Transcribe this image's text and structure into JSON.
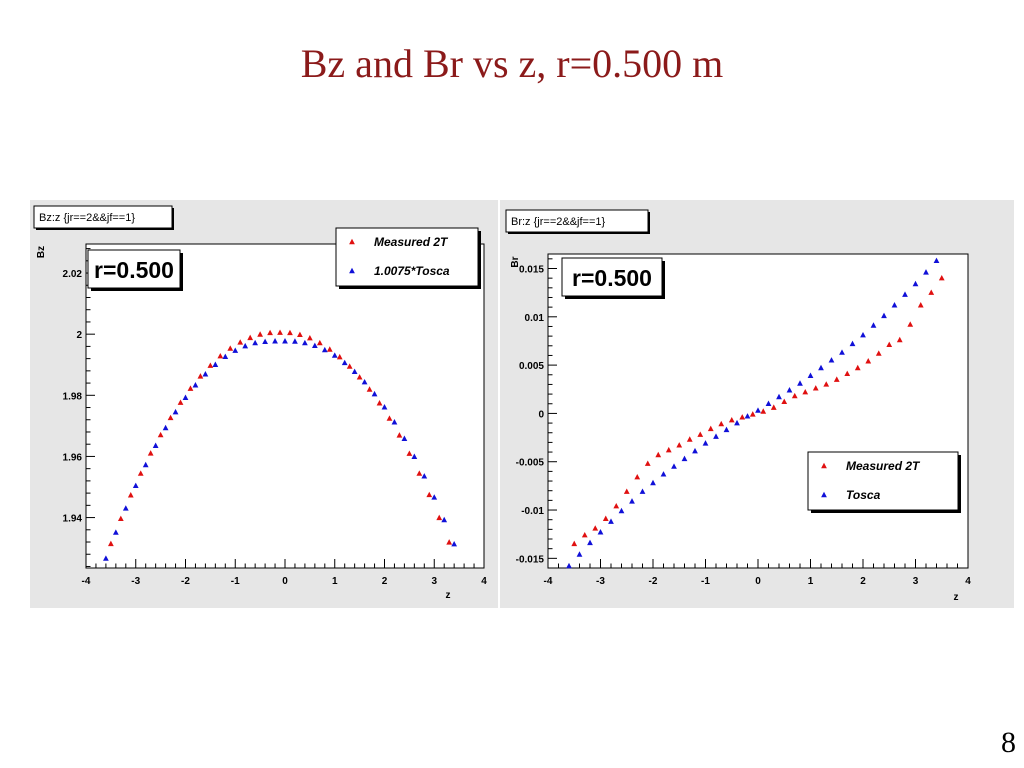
{
  "slide": {
    "title": "Bz and Br vs z,   r=0.500 m",
    "page_number": "8"
  },
  "colors": {
    "measured": "#e01010",
    "tosca": "#1010d8",
    "title": "#8b1a1a",
    "frame_bg": "#e6e6e6",
    "plot_bg": "#ffffff"
  },
  "chart_data": [
    {
      "type": "scatter",
      "hist_title": "Bz:z {jr==2&&jf==1}",
      "annotation": "r=0.500",
      "xlabel": "z",
      "ylabel": "Bz",
      "xlim": [
        -4,
        4
      ],
      "ylim": [
        1.9235,
        2.0295
      ],
      "xticks": [
        -4,
        -3,
        -2,
        -1,
        0,
        1,
        2,
        3,
        4
      ],
      "xtick_labels": [
        "-4",
        "-3",
        "-2",
        "-1",
        "0",
        "1",
        "2",
        "3",
        "4"
      ],
      "yticks": [
        1.94,
        1.96,
        1.98,
        2,
        2.02
      ],
      "ytick_labels": [
        "1.94",
        "1.96",
        "1.98",
        "2",
        "2.02"
      ],
      "legend_position": "top-right",
      "series": [
        {
          "name": "Measured 2T",
          "color": "#e01010",
          "x": [
            -3.5,
            -3.3,
            -3.1,
            -2.9,
            -2.7,
            -2.5,
            -2.3,
            -2.1,
            -1.9,
            -1.7,
            -1.5,
            -1.3,
            -1.1,
            -0.9,
            -0.7,
            -0.5,
            -0.3,
            -0.1,
            0.1,
            0.3,
            0.5,
            0.7,
            0.9,
            1.1,
            1.3,
            1.5,
            1.7,
            1.9,
            2.1,
            2.3,
            2.5,
            2.7,
            2.9,
            3.1,
            3.3,
            3.5
          ],
          "y": [
            1.9314,
            1.9396,
            1.9473,
            1.9544,
            1.961,
            1.967,
            1.9726,
            1.9776,
            1.9822,
            1.9862,
            1.9897,
            1.9928,
            1.9953,
            1.9973,
            1.9988,
            1.9999,
            2.0004,
            2.0005,
            2.0004,
            1.9998,
            1.9987,
            1.9971,
            1.995,
            1.9925,
            1.9894,
            1.9859,
            1.9819,
            1.9774,
            1.9724,
            1.9669,
            1.9609,
            1.9544,
            1.9474,
            1.9399,
            1.9319,
            1.9234
          ]
        },
        {
          "name": "1.0075*Tosca",
          "color": "#1010d8",
          "x": [
            -3.6,
            -3.4,
            -3.2,
            -3.0,
            -2.8,
            -2.6,
            -2.4,
            -2.2,
            -2.0,
            -1.8,
            -1.6,
            -1.4,
            -1.2,
            -1.0,
            -0.8,
            -0.6,
            -0.4,
            -0.2,
            0.0,
            0.2,
            0.4,
            0.6,
            0.8,
            1.0,
            1.2,
            1.4,
            1.6,
            1.8,
            2.0,
            2.2,
            2.4,
            2.6,
            2.8,
            3.0,
            3.2,
            3.4,
            3.6
          ],
          "y": [
            1.9266,
            1.9351,
            1.943,
            1.9504,
            1.9572,
            1.9635,
            1.9693,
            1.9745,
            1.9792,
            1.9833,
            1.9869,
            1.99,
            1.9926,
            1.9946,
            1.9961,
            1.9971,
            1.9975,
            1.9977,
            1.9977,
            1.9976,
            1.9971,
            1.9962,
            1.9948,
            1.993,
            1.9906,
            1.9877,
            1.9843,
            1.9804,
            1.9761,
            1.9712,
            1.9658,
            1.9599,
            1.9535,
            1.9466,
            1.9392,
            1.9313,
            1.9228
          ]
        }
      ]
    },
    {
      "type": "scatter",
      "hist_title": "Br:z {jr==2&&jf==1}",
      "annotation": "r=0.500",
      "xlabel": "z",
      "ylabel": "Br",
      "xlim": [
        -4,
        4
      ],
      "ylim": [
        -0.016,
        0.0165
      ],
      "xticks": [
        -4,
        -3,
        -2,
        -1,
        0,
        1,
        2,
        3,
        4
      ],
      "xtick_labels": [
        "-4",
        "-3",
        "-2",
        "-1",
        "0",
        "1",
        "2",
        "3",
        "4"
      ],
      "yticks": [
        -0.015,
        -0.01,
        -0.005,
        0,
        0.005,
        0.01,
        0.015
      ],
      "ytick_labels": [
        "-0.015",
        "-0.01",
        "-0.005",
        "0",
        "0.005",
        "0.01",
        "0.015"
      ],
      "legend_position": "bottom-right",
      "series": [
        {
          "name": "Measured 2T",
          "color": "#e01010",
          "x": [
            -3.5,
            -3.3,
            -3.1,
            -2.9,
            -2.7,
            -2.5,
            -2.3,
            -2.1,
            -1.9,
            -1.7,
            -1.5,
            -1.3,
            -1.1,
            -0.9,
            -0.7,
            -0.5,
            -0.3,
            -0.1,
            0.1,
            0.3,
            0.5,
            0.7,
            0.9,
            1.1,
            1.3,
            1.5,
            1.7,
            1.9,
            2.1,
            2.3,
            2.5,
            2.7,
            2.9,
            3.1,
            3.3,
            3.5
          ],
          "y": [
            -0.0135,
            -0.0126,
            -0.0119,
            -0.0109,
            -0.0096,
            -0.0081,
            -0.0066,
            -0.0052,
            -0.0043,
            -0.0038,
            -0.0033,
            -0.0027,
            -0.0022,
            -0.0016,
            -0.0011,
            -0.0007,
            -0.0004,
            -0.0001,
            0.0002,
            0.0006,
            0.0012,
            0.0018,
            0.0022,
            0.0026,
            0.003,
            0.0035,
            0.0041,
            0.0047,
            0.0054,
            0.0062,
            0.0071,
            0.0076,
            0.0092,
            0.0112,
            0.0125,
            0.014
          ]
        },
        {
          "name": "Tosca",
          "color": "#1010d8",
          "x": [
            -3.6,
            -3.4,
            -3.2,
            -3.0,
            -2.8,
            -2.6,
            -2.4,
            -2.2,
            -2.0,
            -1.8,
            -1.6,
            -1.4,
            -1.2,
            -1.0,
            -0.8,
            -0.6,
            -0.4,
            -0.2,
            0.0,
            0.2,
            0.4,
            0.6,
            0.8,
            1.0,
            1.2,
            1.4,
            1.6,
            1.8,
            2.0,
            2.2,
            2.4,
            2.6,
            2.8,
            3.0,
            3.2,
            3.4,
            3.6
          ],
          "y": [
            -0.0158,
            -0.0146,
            -0.0134,
            -0.0123,
            -0.0112,
            -0.0101,
            -0.0091,
            -0.0081,
            -0.0072,
            -0.0063,
            -0.0055,
            -0.0047,
            -0.0039,
            -0.0031,
            -0.0024,
            -0.0017,
            -0.001,
            -0.0003,
            0.0003,
            0.001,
            0.0017,
            0.0024,
            0.0031,
            0.0039,
            0.0047,
            0.0055,
            0.0063,
            0.0072,
            0.0081,
            0.0091,
            0.0101,
            0.0112,
            0.0123,
            0.0134,
            0.0146,
            0.0158,
            0.0168
          ]
        }
      ]
    }
  ]
}
